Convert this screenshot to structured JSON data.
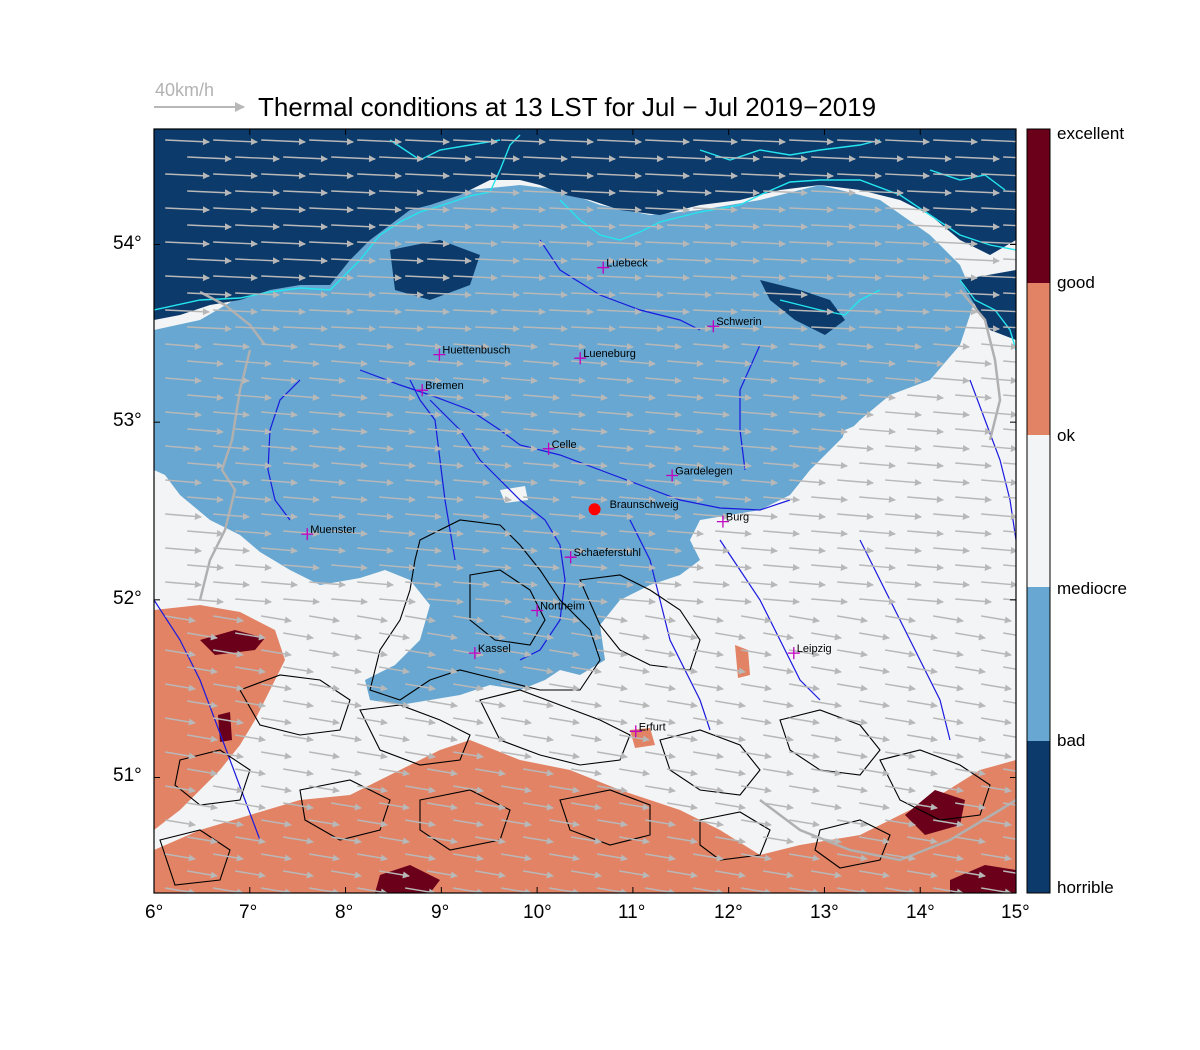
{
  "title": "Thermal conditions at 13 LST for Jul − Jul  2019−2019",
  "wind_reference": {
    "label": "40km/h",
    "speed_kmh": 40
  },
  "map": {
    "lon_range": [
      6,
      15
    ],
    "lat_range": [
      50.35,
      54.65
    ],
    "lon_ticks": [
      "6°",
      "7°",
      "8°",
      "9°",
      "10°",
      "11°",
      "12°",
      "13°",
      "14°",
      "15°"
    ],
    "lat_ticks": [
      "51°",
      "52°",
      "53°",
      "54°"
    ],
    "prevailing_wind": "west-southwest",
    "colors": {
      "horrible": "#0c3a6b",
      "bad": "#67a7d1",
      "mediocre": "#f3f4f6",
      "ok": "#e28365",
      "good": "#e28365",
      "excellent": "#6a0019",
      "coast": "#24e6ef",
      "river": "#1a1adf",
      "border": "#b0b0b0",
      "contour": "#000000",
      "city_marker": "#c000c0",
      "reference_site": "#ff0000",
      "wind_arrow": "#b8b8b8"
    }
  },
  "cities": [
    {
      "name": "Luebeck",
      "lon": 10.69,
      "lat": 53.87
    },
    {
      "name": "Schwerin",
      "lon": 11.84,
      "lat": 53.54
    },
    {
      "name": "Huettenbusch",
      "lon": 8.98,
      "lat": 53.38
    },
    {
      "name": "Lueneburg",
      "lon": 10.45,
      "lat": 53.36
    },
    {
      "name": "Bremen",
      "lon": 8.8,
      "lat": 53.18
    },
    {
      "name": "Celle",
      "lon": 10.12,
      "lat": 52.85
    },
    {
      "name": "Gardelegen",
      "lon": 11.41,
      "lat": 52.7
    },
    {
      "name": "Braunschweig",
      "lon": 10.6,
      "lat": 52.51,
      "reference": true
    },
    {
      "name": "Burg",
      "lon": 11.94,
      "lat": 52.44
    },
    {
      "name": "Muenster",
      "lon": 7.6,
      "lat": 52.37
    },
    {
      "name": "Schaeferstuhl",
      "lon": 10.35,
      "lat": 52.24
    },
    {
      "name": "Northeim",
      "lon": 10.0,
      "lat": 51.94
    },
    {
      "name": "Kassel",
      "lon": 9.35,
      "lat": 51.7
    },
    {
      "name": "Leipzig",
      "lon": 12.68,
      "lat": 51.7
    },
    {
      "name": "Erfurt",
      "lon": 11.03,
      "lat": 51.26
    }
  ],
  "colorbar": {
    "labels": [
      "excellent",
      "good",
      "ok",
      "mediocre",
      "bad",
      "horrible"
    ]
  }
}
